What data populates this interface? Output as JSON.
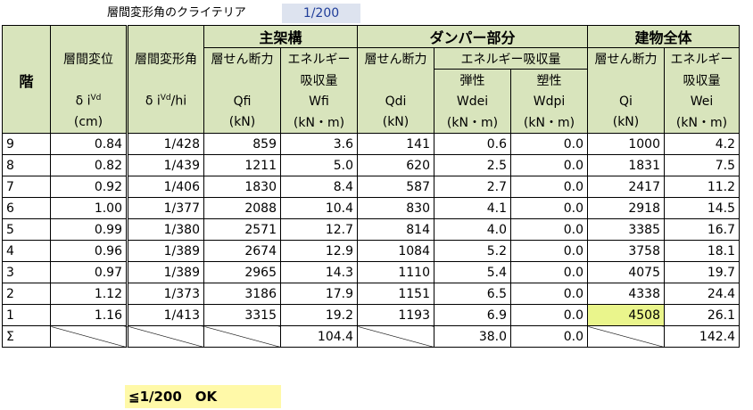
{
  "criteria": {
    "label": "層間変形角のクライテリア",
    "value": "1/200"
  },
  "headers": {
    "floor": "階",
    "drift": {
      "line1": "層間変位",
      "sym": "δ i",
      "sup": "Vd",
      "unit": "(cm)"
    },
    "angle": {
      "line1": "層間変形角",
      "sym": "δ i",
      "sup": "Vd",
      "suffix": "/hi"
    },
    "main_frame": {
      "title": "主架構",
      "shear": {
        "line1": "層せん断力",
        "sym": "Qfi",
        "unit": "(kN)"
      },
      "energy": {
        "line1": "エネルギー",
        "line2": "吸収量",
        "sym": "Wfi",
        "unit": "(kN・m)"
      }
    },
    "damper": {
      "title": "ダンパー部分",
      "shear": {
        "line1": "層せん断力",
        "sym": "Qdi",
        "unit": "(kN)"
      },
      "energy_title": "エネルギー吸収量",
      "elastic": {
        "line1": "弾性",
        "sym": "Wdei",
        "unit": "(kN・m)"
      },
      "plastic": {
        "line1": "塑性",
        "sym": "Wdpi",
        "unit": "(kN・m)"
      }
    },
    "building": {
      "title": "建物全体",
      "shear": {
        "line1": "層せん断力",
        "sym": "Qi",
        "unit": "(kN)"
      },
      "energy": {
        "line1": "エネルギー",
        "line2": "吸収量",
        "sym": "Wei",
        "unit": "(kN・m)"
      }
    }
  },
  "rows": [
    {
      "floor": "9",
      "drift": "0.84",
      "angle": "1/428",
      "qfi": "859",
      "wfi": "3.6",
      "qdi": "141",
      "wdei": "0.6",
      "wdpi": "0.0",
      "qi": "1000",
      "wei": "4.2"
    },
    {
      "floor": "8",
      "drift": "0.82",
      "angle": "1/439",
      "qfi": "1211",
      "wfi": "5.0",
      "qdi": "620",
      "wdei": "2.5",
      "wdpi": "0.0",
      "qi": "1831",
      "wei": "7.5"
    },
    {
      "floor": "7",
      "drift": "0.92",
      "angle": "1/406",
      "qfi": "1830",
      "wfi": "8.4",
      "qdi": "587",
      "wdei": "2.7",
      "wdpi": "0.0",
      "qi": "2417",
      "wei": "11.2"
    },
    {
      "floor": "6",
      "drift": "1.00",
      "angle": "1/377",
      "qfi": "2088",
      "wfi": "10.4",
      "qdi": "830",
      "wdei": "4.1",
      "wdpi": "0.0",
      "qi": "2918",
      "wei": "14.5"
    },
    {
      "floor": "5",
      "drift": "0.99",
      "angle": "1/380",
      "qfi": "2571",
      "wfi": "12.7",
      "qdi": "814",
      "wdei": "4.0",
      "wdpi": "0.0",
      "qi": "3385",
      "wei": "16.7"
    },
    {
      "floor": "4",
      "drift": "0.96",
      "angle": "1/389",
      "qfi": "2674",
      "wfi": "12.9",
      "qdi": "1084",
      "wdei": "5.2",
      "wdpi": "0.0",
      "qi": "3758",
      "wei": "18.1"
    },
    {
      "floor": "3",
      "drift": "0.97",
      "angle": "1/389",
      "qfi": "2965",
      "wfi": "14.3",
      "qdi": "1110",
      "wdei": "5.4",
      "wdpi": "0.0",
      "qi": "4075",
      "wei": "19.7"
    },
    {
      "floor": "2",
      "drift": "1.12",
      "angle": "1/373",
      "qfi": "3186",
      "wfi": "17.9",
      "qdi": "1151",
      "wdei": "6.5",
      "wdpi": "0.0",
      "qi": "4338",
      "wei": "24.4"
    },
    {
      "floor": "1",
      "drift": "1.16",
      "angle": "1/413",
      "qfi": "3315",
      "wfi": "19.2",
      "qdi": "1193",
      "wdei": "6.9",
      "wdpi": "0.0",
      "qi": "4508",
      "wei": "26.1"
    }
  ],
  "total": {
    "label": "Σ",
    "wfi": "104.4",
    "wdei": "38.0",
    "wdpi": "0.0",
    "wei": "142.4"
  },
  "ok_note": "≦1/200　OK",
  "colors": {
    "header_bg": "#d8e4bc",
    "highlight": "#eaf58c",
    "ok_bg": "#fff9a8",
    "criteria_bg": "#dde3ef"
  }
}
